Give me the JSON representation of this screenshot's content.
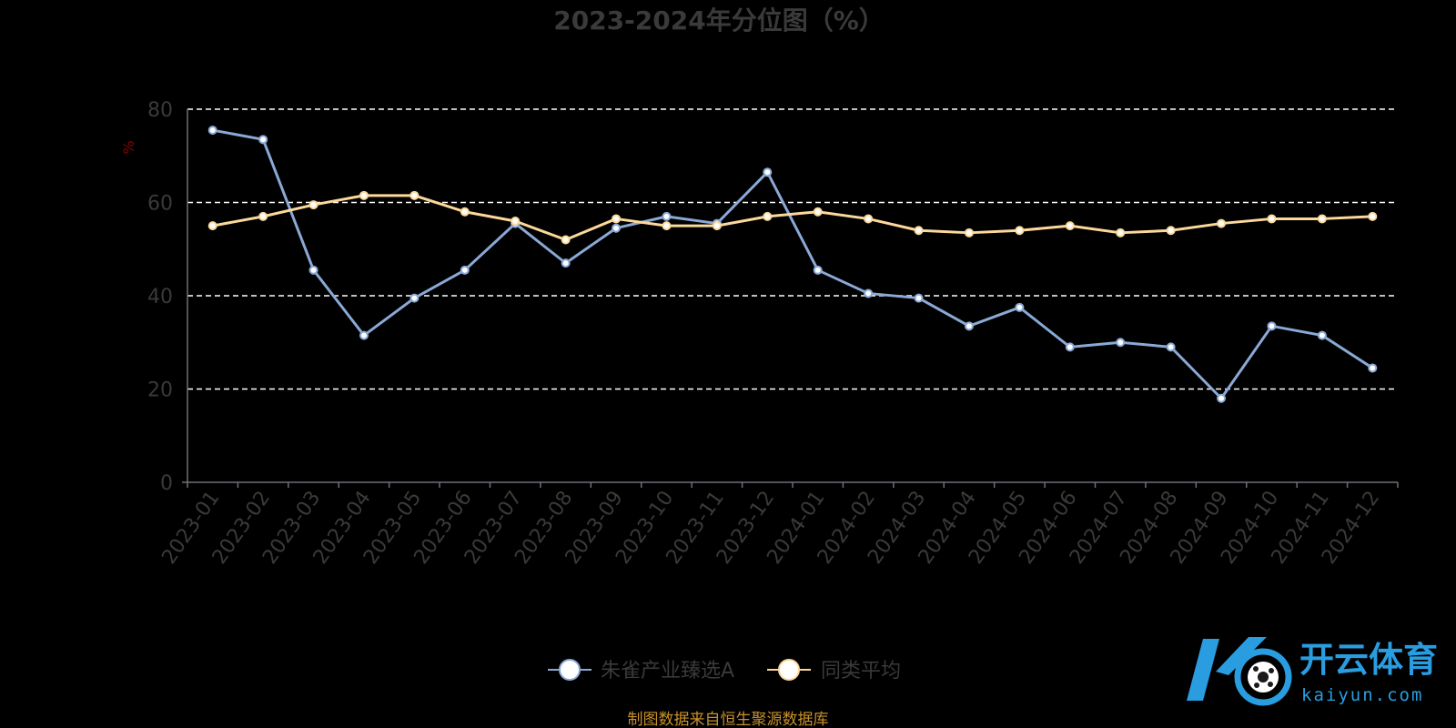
{
  "chart_data": {
    "type": "line",
    "title": "2023-2024年分位图（%）",
    "ylabel": "%",
    "ylim": [
      0,
      80
    ],
    "yticks": [
      "0",
      "20",
      "40",
      "60",
      "80"
    ],
    "grid": "horizontal dashed",
    "legend_position": "bottom-center",
    "categories": [
      "2023-01",
      "2023-02",
      "2023-03",
      "2023-04",
      "2023-05",
      "2023-06",
      "2023-07",
      "2023-08",
      "2023-09",
      "2023-10",
      "2023-11",
      "2023-12",
      "2024-01",
      "2024-02",
      "2024-03",
      "2024-04",
      "2024-05",
      "2024-06",
      "2024-07",
      "2024-08",
      "2024-09",
      "2024-10",
      "2024-11",
      "2024-12"
    ],
    "series": [
      {
        "name": "朱雀产业臻选A",
        "color": "#8aa9d6",
        "values": [
          75.5,
          73.5,
          45.5,
          31.5,
          39.5,
          45.5,
          55.5,
          47,
          54.5,
          57,
          55.5,
          66.5,
          45.5,
          40.5,
          39.5,
          33.5,
          37.5,
          29,
          30,
          29,
          18,
          33.5,
          31.5,
          24.5
        ]
      },
      {
        "name": "同类平均",
        "color": "#fcd89a",
        "values": [
          55,
          57,
          59.5,
          61.5,
          61.5,
          58,
          56,
          52,
          56.5,
          55,
          55,
          57,
          58,
          56.5,
          54,
          53.5,
          54,
          55,
          53.5,
          54,
          55.5,
          56.5,
          56.5,
          57
        ]
      }
    ]
  },
  "source": "制图数据来自恒生聚源数据库",
  "watermark": {
    "cn": "开云体育",
    "en": "kaiyun.com",
    "color": "#2a9de0"
  },
  "colors": {
    "background": "#000000",
    "text": "#3a3a3a",
    "grid": "#ffffff",
    "axis": "#6e7079"
  }
}
